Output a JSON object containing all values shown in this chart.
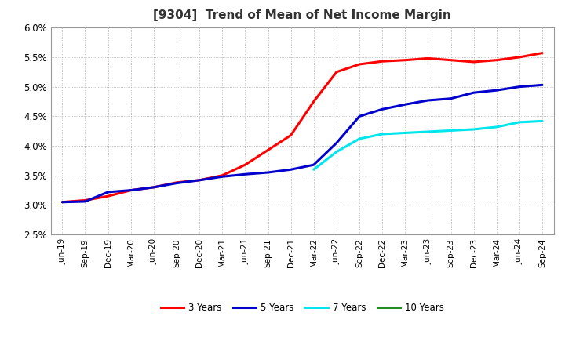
{
  "title": "[9304]  Trend of Mean of Net Income Margin",
  "x_labels": [
    "Jun-19",
    "Sep-19",
    "Dec-19",
    "Mar-20",
    "Jun-20",
    "Sep-20",
    "Dec-20",
    "Mar-21",
    "Jun-21",
    "Sep-21",
    "Dec-21",
    "Mar-22",
    "Jun-22",
    "Sep-22",
    "Dec-22",
    "Mar-23",
    "Jun-23",
    "Sep-23",
    "Dec-23",
    "Mar-24",
    "Jun-24",
    "Sep-24"
  ],
  "y_min": 0.025,
  "y_max": 0.06,
  "y_ticks": [
    0.025,
    0.03,
    0.035,
    0.04,
    0.045,
    0.05,
    0.055,
    0.06
  ],
  "series": {
    "3 Years": {
      "color": "#ff0000",
      "data_x": [
        0,
        1,
        2,
        3,
        4,
        5,
        6,
        7,
        8,
        9,
        10,
        11,
        12,
        13,
        14,
        15,
        16,
        17,
        18,
        19,
        20,
        21
      ],
      "data_y": [
        0.0305,
        0.0308,
        0.0315,
        0.0325,
        0.033,
        0.0338,
        0.0342,
        0.035,
        0.0368,
        0.0393,
        0.0418,
        0.0475,
        0.0525,
        0.0538,
        0.0543,
        0.0545,
        0.0548,
        0.0545,
        0.0542,
        0.0545,
        0.055,
        0.0557
      ]
    },
    "5 Years": {
      "color": "#0000cd",
      "data_x": [
        0,
        1,
        2,
        3,
        4,
        5,
        6,
        7,
        8,
        9,
        10,
        11,
        12,
        13,
        14,
        15,
        16,
        17,
        18,
        19,
        20,
        21
      ],
      "data_y": [
        0.0305,
        0.0306,
        0.0322,
        0.0325,
        0.033,
        0.0337,
        0.0342,
        0.0348,
        0.0352,
        0.0355,
        0.036,
        0.0368,
        0.0405,
        0.045,
        0.0462,
        0.047,
        0.0477,
        0.048,
        0.049,
        0.0494,
        0.05,
        0.0503
      ]
    },
    "7 Years": {
      "color": "#00e5ee",
      "data_x": [
        11,
        12,
        13,
        14,
        15,
        16,
        17,
        18,
        19,
        20,
        21
      ],
      "data_y": [
        0.036,
        0.039,
        0.0412,
        0.042,
        0.0422,
        0.0424,
        0.0426,
        0.0428,
        0.0432,
        0.044,
        0.0442
      ]
    },
    "10 Years": {
      "color": "#228b22",
      "data_x": [],
      "data_y": []
    }
  },
  "legend_labels": [
    "3 Years",
    "5 Years",
    "7 Years",
    "10 Years"
  ],
  "legend_colors": [
    "#ff0000",
    "#0000cd",
    "#00e5ee",
    "#228b22"
  ]
}
